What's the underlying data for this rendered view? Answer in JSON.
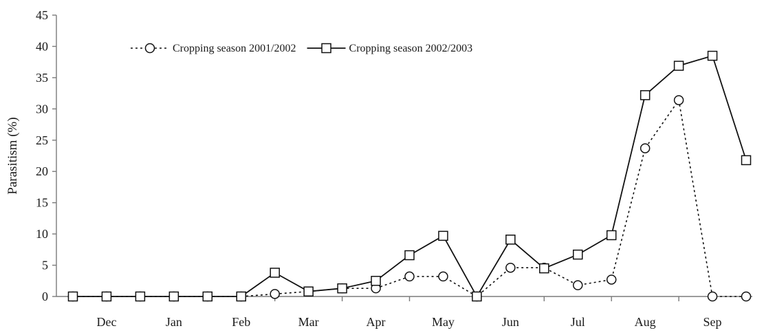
{
  "chart_data": {
    "type": "line",
    "title": "",
    "xlabel": "",
    "ylabel": "Parasitism (%)",
    "ylim": [
      0,
      45
    ],
    "yticks": [
      "0",
      "5",
      "10",
      "15",
      "20",
      "25",
      "30",
      "35",
      "40",
      "45"
    ],
    "month_labels": [
      "Dec",
      "Jan",
      "Feb",
      "Mar",
      "Apr",
      "May",
      "Jun",
      "Jul",
      "Aug",
      "Sep"
    ],
    "x_sample_positions": [
      1,
      2,
      3,
      4,
      5,
      6,
      7,
      8,
      9,
      10,
      11,
      12,
      13,
      14,
      15,
      16,
      17,
      18,
      19,
      20,
      21
    ],
    "month_label_positions": [
      2,
      4,
      6,
      8,
      10,
      12,
      14,
      16,
      18,
      20
    ],
    "grid": false,
    "legend_position": "top-left",
    "series": [
      {
        "name": "Cropping season 2001/2002",
        "line_style": "dotted",
        "marker": "circle",
        "values": [
          0,
          0,
          0,
          0,
          0,
          0,
          0.4,
          0.8,
          1.3,
          1.3,
          3.2,
          3.2,
          0,
          4.6,
          4.6,
          1.8,
          2.7,
          23.7,
          31.4,
          0,
          0
        ]
      },
      {
        "name": "Cropping season 2002/2003",
        "line_style": "solid",
        "marker": "square",
        "values": [
          0,
          0,
          0,
          0,
          0,
          0,
          3.8,
          0.8,
          1.3,
          2.5,
          6.6,
          9.7,
          0,
          9.1,
          4.5,
          6.7,
          9.8,
          32.2,
          36.9,
          38.5,
          21.8
        ]
      }
    ]
  }
}
